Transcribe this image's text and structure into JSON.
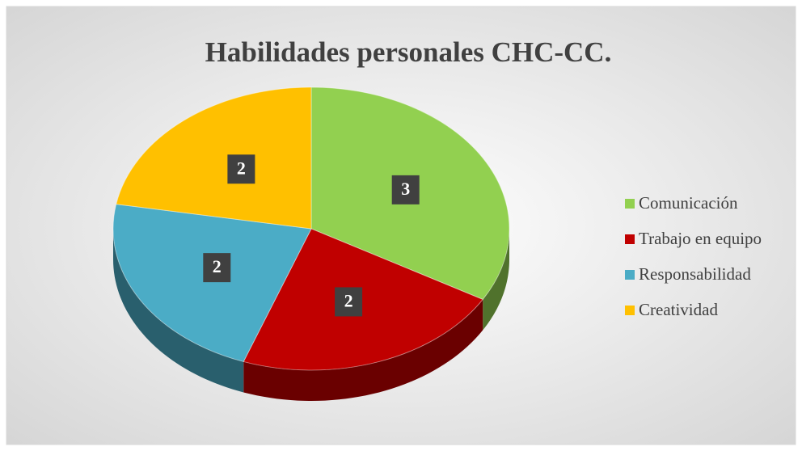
{
  "chart_data": {
    "type": "pie",
    "title": "Habilidades personales CHC-CC.",
    "categories": [
      "Comunicación",
      "Trabajo en equipo",
      "Responsabilidad",
      "Creatividad"
    ],
    "values": [
      3,
      2,
      2,
      2
    ],
    "colors": [
      "#92d050",
      "#c00000",
      "#4bacc6",
      "#ffc000"
    ],
    "legend": "right"
  }
}
